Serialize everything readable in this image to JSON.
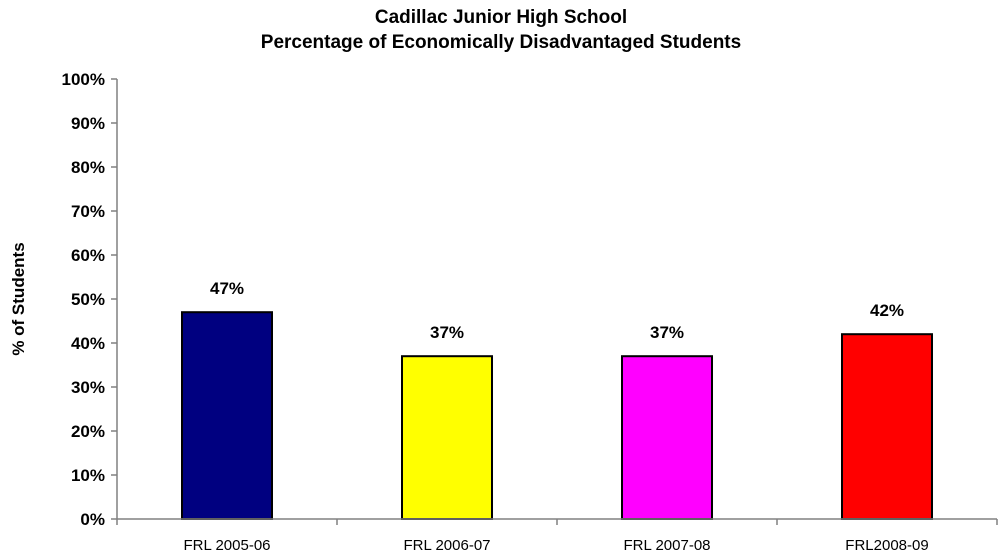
{
  "chart_data": {
    "type": "bar",
    "title_lines": [
      "Cadillac Junior High School",
      "Percentage of Economically Disadvantaged Students"
    ],
    "xlabel": "",
    "ylabel": "% of Students",
    "ylim": [
      0,
      100
    ],
    "y_ticks": [
      0,
      10,
      20,
      30,
      40,
      50,
      60,
      70,
      80,
      90,
      100
    ],
    "y_tick_format": "percent",
    "categories": [
      "FRL 2005-06",
      "FRL 2006-07",
      "FRL 2007-08",
      "FRL2008-09"
    ],
    "values": [
      47,
      37,
      37,
      42
    ],
    "data_labels": [
      "47%",
      "37%",
      "37%",
      "42%"
    ],
    "bar_colors": [
      "#000080",
      "#ffff00",
      "#ff00ff",
      "#ff0000"
    ],
    "grid": false,
    "legend": "none"
  }
}
